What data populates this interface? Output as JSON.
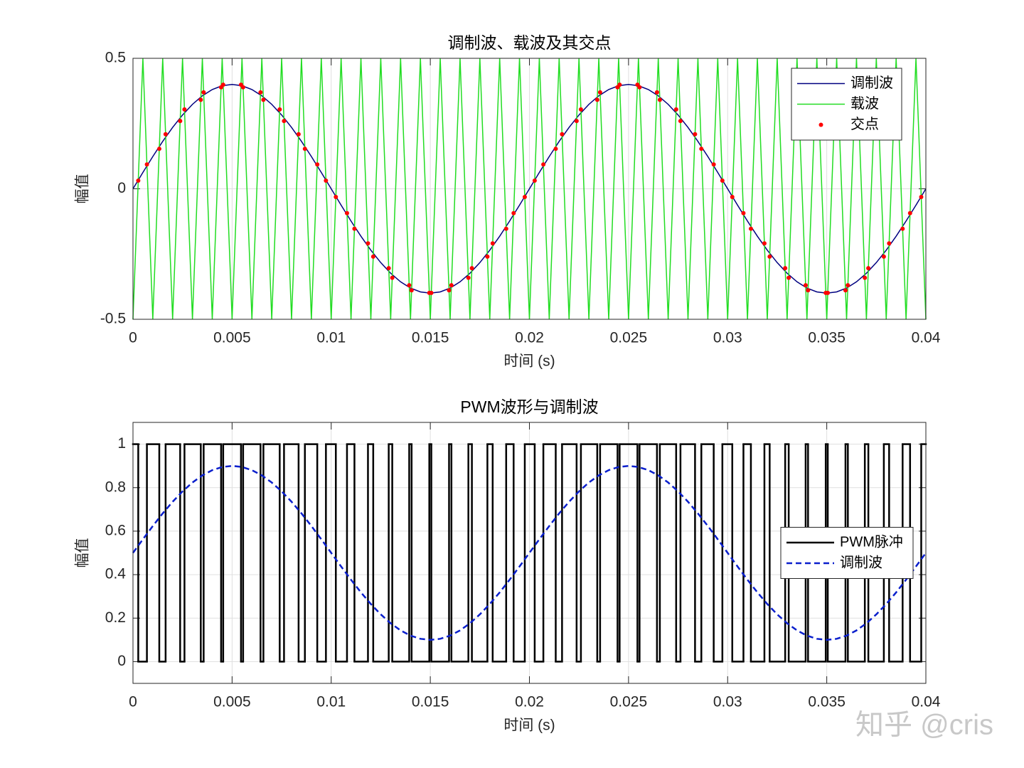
{
  "chart_data": [
    {
      "type": "line",
      "title": "调制波、载波及其交点",
      "xlabel": "时间 (s)",
      "ylabel": "幅值",
      "x": [
        0,
        0.0005,
        0.001,
        0.0015,
        0.002,
        0.0025,
        0.003,
        0.0035,
        0.004,
        0.0045,
        0.005,
        0.0055,
        0.006,
        0.0065,
        0.007,
        0.0075,
        0.008,
        0.0085,
        0.009,
        0.0095,
        0.01,
        0.0105,
        0.011,
        0.0115,
        0.012,
        0.0125,
        0.013,
        0.0135,
        0.014,
        0.0145,
        0.015,
        0.0155,
        0.016,
        0.0165,
        0.017,
        0.0175,
        0.018,
        0.0185,
        0.019,
        0.0195,
        0.02,
        0.0205,
        0.021,
        0.0215,
        0.022,
        0.0225,
        0.023,
        0.0235,
        0.024,
        0.0245,
        0.025,
        0.0255,
        0.026,
        0.0265,
        0.027,
        0.0275,
        0.028,
        0.0285,
        0.029,
        0.0295,
        0.03,
        0.0305,
        0.031,
        0.0315,
        0.032,
        0.0325,
        0.033,
        0.0335,
        0.034,
        0.0345,
        0.035,
        0.0355,
        0.036,
        0.0365,
        0.037,
        0.0375,
        0.038,
        0.0385,
        0.039,
        0.0395,
        0.04
      ],
      "series": [
        {
          "name": "调制波",
          "color": "#000080",
          "style": "solid",
          "values": [
            0,
            0.0626,
            0.1236,
            0.1816,
            0.2351,
            0.2828,
            0.3236,
            0.3564,
            0.3804,
            0.3951,
            0.4,
            0.3951,
            0.3804,
            0.3564,
            0.3236,
            0.2828,
            0.2351,
            0.1816,
            0.1236,
            0.0626,
            0,
            -0.0626,
            -0.1236,
            -0.1816,
            -0.2351,
            -0.2828,
            -0.3236,
            -0.3564,
            -0.3804,
            -0.3951,
            -0.4,
            -0.3951,
            -0.3804,
            -0.3564,
            -0.3236,
            -0.2828,
            -0.2351,
            -0.1816,
            -0.1236,
            -0.0626,
            0,
            0.0626,
            0.1236,
            0.1816,
            0.2351,
            0.2828,
            0.3236,
            0.3564,
            0.3804,
            0.3951,
            0.4,
            0.3951,
            0.3804,
            0.3564,
            0.3236,
            0.2828,
            0.2351,
            0.1816,
            0.1236,
            0.0626,
            0,
            -0.0626,
            -0.1236,
            -0.1816,
            -0.2351,
            -0.2828,
            -0.3236,
            -0.3564,
            -0.3804,
            -0.3951,
            -0.4,
            -0.3951,
            -0.3804,
            -0.3564,
            -0.3236,
            -0.2828,
            -0.2351,
            -0.1816,
            -0.1236,
            -0.0626,
            0
          ]
        },
        {
          "name": "载波",
          "color": "#22dd22",
          "style": "solid",
          "values": [
            -0.5,
            0.5,
            -0.5,
            0.5,
            -0.5,
            0.5,
            -0.5,
            0.5,
            -0.5,
            0.5,
            -0.5,
            0.5,
            -0.5,
            0.5,
            -0.5,
            0.5,
            -0.5,
            0.5,
            -0.5,
            0.5,
            -0.5,
            0.5,
            -0.5,
            0.5,
            -0.5,
            0.5,
            -0.5,
            0.5,
            -0.5,
            0.5,
            -0.5,
            0.5,
            -0.5,
            0.5,
            -0.5,
            0.5,
            -0.5,
            0.5,
            -0.5,
            0.5,
            -0.5,
            0.5,
            -0.5,
            0.5,
            -0.5,
            0.5,
            -0.5,
            0.5,
            -0.5,
            0.5,
            -0.5,
            0.5,
            -0.5,
            0.5,
            -0.5,
            0.5,
            -0.5,
            0.5,
            -0.5,
            0.5,
            -0.5,
            0.5,
            -0.5,
            0.5,
            -0.5,
            0.5,
            -0.5,
            0.5,
            -0.5,
            0.5,
            -0.5,
            0.5,
            -0.5,
            0.5,
            -0.5,
            0.5,
            -0.5,
            0.5,
            -0.5,
            0.5,
            -0.5
          ]
        },
        {
          "name": "交点",
          "color": "#ff0000",
          "style": "markers",
          "x": [
            0.000266,
            0.000703,
            0.001327,
            0.001646,
            0.00238,
            0.002598,
            0.003421,
            0.003565,
            0.004445,
            0.004551,
            0.005449,
            0.005556,
            0.006435,
            0.00658,
            0.007402,
            0.00762,
            0.008355,
            0.008673,
            0.009297,
            0.009734,
            0.010234,
            0.010797,
            0.011173,
            0.011855,
            0.01212,
            0.012902,
            0.01308,
            0.013935,
            0.014056,
            0.014949,
            0.015051,
            0.015945,
            0.016065,
            0.016921,
            0.017098,
            0.01788,
            0.018146,
            0.018827,
            0.019203,
            0.019766,
            0.020266,
            0.020703,
            0.021327,
            0.021646,
            0.02238,
            0.022598,
            0.023421,
            0.023565,
            0.024445,
            0.024551,
            0.025449,
            0.025556,
            0.026435,
            0.02658,
            0.027402,
            0.02762,
            0.028355,
            0.028673,
            0.029297,
            0.029734,
            0.030234,
            0.030797,
            0.031173,
            0.031855,
            0.03212,
            0.032902,
            0.03308,
            0.033935,
            0.034056,
            0.034949,
            0.035051,
            0.035945,
            0.036065,
            0.036921,
            0.037098,
            0.03788,
            0.038146,
            0.038827,
            0.039203,
            0.039766
          ],
          "values": [
            0.0314,
            0.0934,
            0.1531,
            0.209,
            0.2598,
            0.3042,
            0.341,
            0.3696,
            0.389,
            0.3988,
            0.3988,
            0.389,
            0.3696,
            0.341,
            0.3042,
            0.2598,
            0.209,
            0.1531,
            0.0934,
            0.0314,
            -0.0314,
            -0.0934,
            -0.1531,
            -0.209,
            -0.2598,
            -0.3042,
            -0.341,
            -0.3696,
            -0.389,
            -0.3988,
            -0.3988,
            -0.389,
            -0.3696,
            -0.341,
            -0.3042,
            -0.2598,
            -0.209,
            -0.1531,
            -0.0934,
            -0.0314,
            0.0314,
            0.0934,
            0.1531,
            0.209,
            0.2598,
            0.3042,
            0.341,
            0.3696,
            0.389,
            0.3988,
            0.3988,
            0.389,
            0.3696,
            0.341,
            0.3042,
            0.2598,
            0.209,
            0.1531,
            0.0934,
            0.0314,
            -0.0314,
            -0.0934,
            -0.1531,
            -0.209,
            -0.2598,
            -0.3042,
            -0.341,
            -0.3696,
            -0.389,
            -0.3988,
            -0.3988,
            -0.389,
            -0.3696,
            -0.341,
            -0.3042,
            -0.2598,
            -0.209,
            -0.1531,
            -0.0934,
            -0.0314
          ]
        }
      ],
      "xlim": [
        0,
        0.04
      ],
      "xticks": [
        0,
        0.005,
        0.01,
        0.015,
        0.02,
        0.025,
        0.03,
        0.035,
        0.04
      ],
      "ylim": [
        -0.5,
        0.5
      ],
      "yticks": [
        -0.5,
        0,
        0.5
      ],
      "grid": true,
      "legend": "northeast"
    },
    {
      "type": "line",
      "title": "PWM波形与调制波",
      "xlabel": "时间 (s)",
      "ylabel": "幅值",
      "x": [
        0,
        0.0005,
        0.001,
        0.0015,
        0.002,
        0.0025,
        0.003,
        0.0035,
        0.004,
        0.0045,
        0.005,
        0.0055,
        0.006,
        0.0065,
        0.007,
        0.0075,
        0.008,
        0.0085,
        0.009,
        0.0095,
        0.01,
        0.0105,
        0.011,
        0.0115,
        0.012,
        0.0125,
        0.013,
        0.0135,
        0.014,
        0.0145,
        0.015,
        0.0155,
        0.016,
        0.0165,
        0.017,
        0.0175,
        0.018,
        0.0185,
        0.019,
        0.0195,
        0.02,
        0.0205,
        0.021,
        0.0215,
        0.022,
        0.0225,
        0.023,
        0.0235,
        0.024,
        0.0245,
        0.025,
        0.0255,
        0.026,
        0.0265,
        0.027,
        0.0275,
        0.028,
        0.0285,
        0.029,
        0.0295,
        0.03,
        0.0305,
        0.031,
        0.0315,
        0.032,
        0.0325,
        0.033,
        0.0335,
        0.034,
        0.0345,
        0.035,
        0.0355,
        0.036,
        0.0365,
        0.037,
        0.0375,
        0.038,
        0.0385,
        0.039,
        0.0395,
        0.04
      ],
      "series": [
        {
          "name": "PWM脉冲",
          "color": "#000000",
          "style": "step",
          "x": [
            0,
            0.000266,
            0.000703,
            0.001327,
            0.001646,
            0.00238,
            0.002598,
            0.003421,
            0.003565,
            0.004445,
            0.004551,
            0.005449,
            0.005556,
            0.006435,
            0.00658,
            0.007402,
            0.00762,
            0.008355,
            0.008673,
            0.009297,
            0.009734,
            0.010234,
            0.010797,
            0.011173,
            0.011855,
            0.01212,
            0.012902,
            0.01308,
            0.013935,
            0.014056,
            0.014949,
            0.015051,
            0.015945,
            0.016065,
            0.016921,
            0.017098,
            0.01788,
            0.018146,
            0.018827,
            0.019203,
            0.019766,
            0.020266,
            0.020703,
            0.021327,
            0.021646,
            0.02238,
            0.022598,
            0.023421,
            0.023565,
            0.024445,
            0.024551,
            0.025449,
            0.025556,
            0.026435,
            0.02658,
            0.027402,
            0.02762,
            0.028355,
            0.028673,
            0.029297,
            0.029734,
            0.030234,
            0.030797,
            0.031173,
            0.031855,
            0.03212,
            0.032902,
            0.03308,
            0.033935,
            0.034056,
            0.034949,
            0.035051,
            0.035945,
            0.036065,
            0.036921,
            0.037098,
            0.03788,
            0.038146,
            0.038827,
            0.039203,
            0.039766
          ],
          "values": [
            1,
            0,
            1,
            0,
            1,
            0,
            1,
            0,
            1,
            0,
            1,
            0,
            1,
            0,
            1,
            0,
            1,
            0,
            1,
            0,
            1,
            0,
            1,
            0,
            1,
            0,
            1,
            0,
            1,
            0,
            1,
            0,
            1,
            0,
            1,
            0,
            1,
            0,
            1,
            0,
            1,
            0,
            1,
            0,
            1,
            0,
            1,
            0,
            1,
            0,
            1,
            0,
            1,
            0,
            1,
            0,
            1,
            0,
            1,
            0,
            1,
            0,
            1,
            0,
            1,
            0,
            1,
            0,
            1,
            0,
            1,
            0,
            1,
            0,
            1,
            0,
            1,
            0,
            1,
            0,
            1
          ]
        },
        {
          "name": "调制波",
          "color": "#0a1fcc",
          "style": "dashed",
          "values": [
            0.5,
            0.5626,
            0.6236,
            0.6816,
            0.7351,
            0.7828,
            0.8236,
            0.8564,
            0.8804,
            0.8951,
            0.9,
            0.8951,
            0.8804,
            0.8564,
            0.8236,
            0.7828,
            0.7351,
            0.6816,
            0.6236,
            0.5626,
            0.5,
            0.4374,
            0.3764,
            0.3184,
            0.2649,
            0.2172,
            0.1764,
            0.1436,
            0.1196,
            0.1049,
            0.1,
            0.1049,
            0.1196,
            0.1436,
            0.1764,
            0.2172,
            0.2649,
            0.3184,
            0.3764,
            0.4374,
            0.5,
            0.5626,
            0.6236,
            0.6816,
            0.7351,
            0.7828,
            0.8236,
            0.8564,
            0.8804,
            0.8951,
            0.9,
            0.8951,
            0.8804,
            0.8564,
            0.8236,
            0.7828,
            0.7351,
            0.6816,
            0.6236,
            0.5626,
            0.5,
            0.4374,
            0.3764,
            0.3184,
            0.2649,
            0.2172,
            0.1764,
            0.1436,
            0.1196,
            0.1049,
            0.1,
            0.1049,
            0.1196,
            0.1436,
            0.1764,
            0.2172,
            0.2649,
            0.3184,
            0.3764,
            0.4374,
            0.5
          ]
        }
      ],
      "xlim": [
        0,
        0.04
      ],
      "xticks": [
        0,
        0.005,
        0.01,
        0.015,
        0.02,
        0.025,
        0.03,
        0.035,
        0.04
      ],
      "ylim": [
        -0.1,
        1.1
      ],
      "yticks": [
        0,
        0.2,
        0.4,
        0.6,
        0.8,
        1
      ],
      "grid": true,
      "legend": "east"
    }
  ],
  "watermark": "知乎 @cris"
}
